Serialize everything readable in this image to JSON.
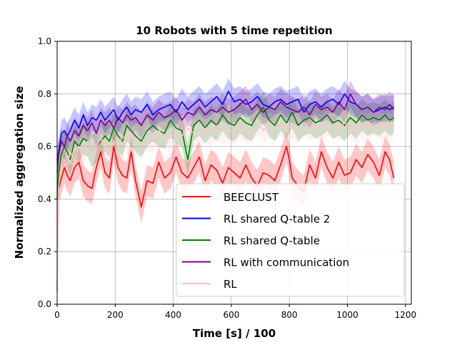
{
  "chart_data": {
    "type": "line",
    "title": "10 Robots with 5 time repetition",
    "xlabel": "Time [s] / 100",
    "ylabel": "Normalized aggregation size",
    "xlim": [
      0,
      1220
    ],
    "ylim": [
      0,
      1.0
    ],
    "xticks": [
      0,
      200,
      400,
      600,
      800,
      1000,
      1200
    ],
    "yticks": [
      0.0,
      0.2,
      0.4,
      0.6,
      0.8,
      1.0
    ],
    "xtick_labels": [
      "0",
      "200",
      "400",
      "600",
      "800",
      "1000",
      "1200"
    ],
    "ytick_labels": [
      "0.0",
      "0.2",
      "0.4",
      "0.6",
      "0.8",
      "1.0"
    ],
    "grid": true,
    "legend_position": "bottom-right",
    "series": [
      {
        "name": "BEECLUST",
        "color": "#ff0000",
        "band_color": "#ff0000",
        "x": [
          0,
          5,
          15,
          25,
          35,
          45,
          60,
          75,
          90,
          105,
          120,
          135,
          150,
          165,
          180,
          195,
          210,
          225,
          240,
          255,
          270,
          290,
          310,
          330,
          350,
          370,
          390,
          410,
          430,
          450,
          470,
          490,
          510,
          530,
          550,
          570,
          590,
          610,
          630,
          650,
          670,
          690,
          710,
          730,
          750,
          770,
          790,
          800,
          810,
          830,
          850,
          870,
          890,
          910,
          930,
          950,
          970,
          990,
          1010,
          1030,
          1050,
          1070,
          1090,
          1110,
          1130,
          1145,
          1160
        ],
        "values": [
          0.05,
          0.44,
          0.48,
          0.52,
          0.49,
          0.47,
          0.52,
          0.54,
          0.47,
          0.45,
          0.44,
          0.52,
          0.58,
          0.5,
          0.48,
          0.6,
          0.52,
          0.49,
          0.48,
          0.58,
          0.47,
          0.37,
          0.47,
          0.46,
          0.54,
          0.48,
          0.5,
          0.56,
          0.5,
          0.48,
          0.52,
          0.56,
          0.47,
          0.53,
          0.51,
          0.46,
          0.52,
          0.5,
          0.48,
          0.53,
          0.48,
          0.45,
          0.5,
          0.49,
          0.47,
          0.53,
          0.6,
          0.55,
          0.48,
          0.45,
          0.43,
          0.53,
          0.48,
          0.58,
          0.52,
          0.48,
          0.54,
          0.49,
          0.5,
          0.55,
          0.52,
          0.57,
          0.54,
          0.49,
          0.58,
          0.55,
          0.48
        ],
        "spread": 0.06
      },
      {
        "name": "RL shared Q-table 2",
        "color": "#0000ff",
        "band_color": "#0000ff",
        "x": [
          0,
          5,
          15,
          25,
          35,
          45,
          60,
          75,
          90,
          105,
          120,
          135,
          150,
          165,
          180,
          195,
          210,
          225,
          240,
          255,
          270,
          290,
          310,
          330,
          350,
          370,
          390,
          410,
          430,
          450,
          470,
          490,
          510,
          530,
          550,
          570,
          590,
          610,
          630,
          650,
          670,
          690,
          710,
          730,
          750,
          770,
          790,
          810,
          830,
          850,
          870,
          890,
          910,
          930,
          950,
          970,
          990,
          1010,
          1030,
          1050,
          1070,
          1090,
          1110,
          1130,
          1145,
          1160
        ],
        "values": [
          0.55,
          0.58,
          0.65,
          0.66,
          0.64,
          0.66,
          0.7,
          0.67,
          0.72,
          0.68,
          0.71,
          0.7,
          0.73,
          0.7,
          0.72,
          0.74,
          0.7,
          0.73,
          0.75,
          0.72,
          0.74,
          0.73,
          0.76,
          0.72,
          0.74,
          0.75,
          0.76,
          0.73,
          0.77,
          0.74,
          0.76,
          0.78,
          0.75,
          0.77,
          0.79,
          0.76,
          0.81,
          0.77,
          0.78,
          0.76,
          0.77,
          0.79,
          0.76,
          0.75,
          0.77,
          0.78,
          0.76,
          0.77,
          0.78,
          0.73,
          0.76,
          0.77,
          0.75,
          0.77,
          0.78,
          0.76,
          0.8,
          0.77,
          0.76,
          0.74,
          0.75,
          0.73,
          0.74,
          0.75,
          0.74,
          0.75
        ],
        "spread": 0.05
      },
      {
        "name": "RL shared Q-table",
        "color": "#008000",
        "band_color": "#008000",
        "x": [
          0,
          5,
          15,
          25,
          35,
          45,
          60,
          75,
          90,
          105,
          120,
          135,
          150,
          165,
          180,
          195,
          210,
          225,
          240,
          255,
          270,
          290,
          310,
          330,
          350,
          370,
          390,
          410,
          430,
          450,
          470,
          490,
          510,
          530,
          550,
          570,
          590,
          610,
          630,
          650,
          670,
          690,
          710,
          730,
          750,
          770,
          790,
          810,
          830,
          850,
          870,
          890,
          910,
          930,
          950,
          970,
          990,
          1010,
          1030,
          1050,
          1070,
          1090,
          1110,
          1130,
          1145,
          1160
        ],
        "values": [
          0.4,
          0.5,
          0.57,
          0.6,
          0.58,
          0.55,
          0.62,
          0.6,
          0.63,
          0.62,
          0.58,
          0.6,
          0.62,
          0.64,
          0.62,
          0.67,
          0.64,
          0.62,
          0.68,
          0.66,
          0.64,
          0.62,
          0.66,
          0.68,
          0.66,
          0.65,
          0.7,
          0.67,
          0.66,
          0.55,
          0.68,
          0.7,
          0.67,
          0.7,
          0.68,
          0.72,
          0.69,
          0.68,
          0.71,
          0.69,
          0.68,
          0.72,
          0.75,
          0.7,
          0.68,
          0.72,
          0.69,
          0.73,
          0.68,
          0.7,
          0.71,
          0.69,
          0.7,
          0.72,
          0.69,
          0.7,
          0.68,
          0.71,
          0.69,
          0.72,
          0.7,
          0.71,
          0.7,
          0.72,
          0.7,
          0.71
        ],
        "spread": 0.06
      },
      {
        "name": "RL with communication",
        "color": "#800080",
        "band_color": "#800080",
        "x": [
          0,
          5,
          15,
          25,
          35,
          45,
          60,
          75,
          90,
          105,
          120,
          135,
          150,
          165,
          180,
          195,
          210,
          225,
          240,
          255,
          270,
          290,
          310,
          330,
          350,
          370,
          390,
          410,
          430,
          450,
          470,
          490,
          510,
          530,
          550,
          570,
          590,
          610,
          630,
          650,
          670,
          690,
          710,
          730,
          750,
          770,
          790,
          810,
          830,
          850,
          870,
          890,
          910,
          930,
          950,
          970,
          990,
          1010,
          1030,
          1050,
          1070,
          1090,
          1110,
          1130,
          1145,
          1160
        ],
        "values": [
          0.5,
          0.57,
          0.62,
          0.6,
          0.64,
          0.62,
          0.66,
          0.64,
          0.68,
          0.66,
          0.69,
          0.65,
          0.7,
          0.68,
          0.7,
          0.67,
          0.71,
          0.69,
          0.72,
          0.7,
          0.71,
          0.68,
          0.72,
          0.7,
          0.73,
          0.71,
          0.72,
          0.74,
          0.7,
          0.73,
          0.72,
          0.75,
          0.72,
          0.74,
          0.73,
          0.75,
          0.73,
          0.74,
          0.76,
          0.78,
          0.74,
          0.76,
          0.73,
          0.75,
          0.74,
          0.77,
          0.75,
          0.74,
          0.73,
          0.75,
          0.72,
          0.76,
          0.74,
          0.75,
          0.73,
          0.77,
          0.74,
          0.8,
          0.76,
          0.74,
          0.75,
          0.73,
          0.75,
          0.74,
          0.76,
          0.74
        ],
        "spread": 0.05
      },
      {
        "name": "RL",
        "color": "#ffc0cb",
        "band_color": "#ffc0cb",
        "x": [
          0,
          5,
          15,
          25,
          35,
          45,
          60,
          75,
          90,
          105,
          120,
          135,
          150,
          165,
          180,
          195,
          210,
          225,
          240,
          255,
          270,
          290,
          310,
          330,
          350,
          370,
          390,
          410,
          430,
          450,
          470,
          490,
          510,
          530,
          550,
          570,
          590,
          610,
          630,
          650,
          670,
          690,
          710,
          730,
          750,
          770,
          790,
          810,
          830,
          850,
          870,
          890,
          910,
          930,
          950,
          970,
          990,
          1010,
          1030,
          1050,
          1070,
          1090,
          1110,
          1130,
          1145,
          1160
        ],
        "values": [
          0.05,
          0.45,
          0.52,
          0.55,
          0.53,
          0.58,
          0.55,
          0.6,
          0.57,
          0.62,
          0.58,
          0.6,
          0.63,
          0.6,
          0.58,
          0.62,
          0.6,
          0.64,
          0.62,
          0.65,
          0.62,
          0.6,
          0.64,
          0.62,
          0.66,
          0.64,
          0.63,
          0.66,
          0.64,
          0.67,
          0.65,
          0.64,
          0.67,
          0.65,
          0.68,
          0.66,
          0.67,
          0.65,
          0.68,
          0.66,
          0.67,
          0.69,
          0.66,
          0.68,
          0.67,
          0.69,
          0.67,
          0.68,
          0.66,
          0.69,
          0.67,
          0.68,
          0.67,
          0.69,
          0.68,
          0.67,
          0.69,
          0.68,
          0.66,
          0.68,
          0.67,
          0.69,
          0.68,
          0.67,
          0.68,
          0.67
        ],
        "spread": 0.05
      }
    ]
  }
}
